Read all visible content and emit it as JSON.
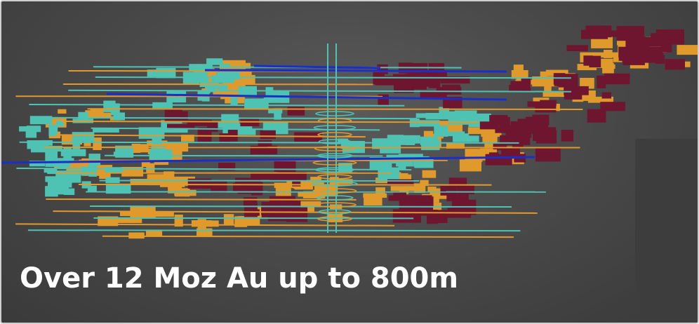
{
  "caption": "Over 12 Moz Au up to 800m",
  "colors": {
    "background": "#4a4a4a",
    "teal": "#4ec3b4",
    "orange": "#e09a2c",
    "maroon": "#6e1530",
    "blue": "#1a2fc8",
    "caption_text": "#ffffff"
  }
}
